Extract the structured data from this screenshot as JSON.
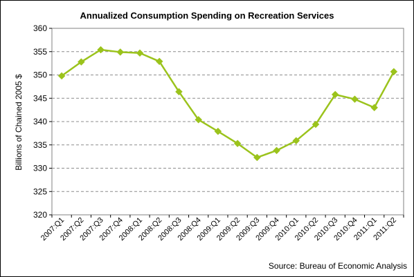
{
  "chart_data": {
    "type": "line",
    "title": "Annualized Consumption Spending on Recreation Services",
    "ylabel": "Billions of Chained 2005 $",
    "xlabel": "",
    "source": "Source: Bureau of Economic Analysis",
    "ylim": [
      320,
      360
    ],
    "yticks": [
      320,
      325,
      330,
      335,
      340,
      345,
      350,
      355,
      360
    ],
    "grid": true,
    "legend": "none",
    "categories": [
      "2007:Q1",
      "2007:Q2",
      "2007:Q3",
      "2007:Q4",
      "2008:Q1",
      "2008:Q2",
      "2008:Q3",
      "2008:Q4",
      "2009:Q1",
      "2009:Q2",
      "2009:Q3",
      "2009:Q4",
      "2010:Q1",
      "2010:Q2",
      "2010:Q3",
      "2010:Q4",
      "2011:Q1",
      "2011:Q2"
    ],
    "series": [
      {
        "values": [
          349.8,
          352.8,
          355.4,
          354.9,
          354.7,
          352.9,
          346.4,
          340.4,
          337.9,
          335.3,
          332.3,
          333.8,
          335.9,
          339.4,
          345.8,
          344.8,
          343.0,
          350.7
        ]
      }
    ],
    "colors": {
      "line": "#9BC31C",
      "marker": "#9BC31C",
      "grid": "#8c8c8c",
      "frame": "#808080"
    }
  }
}
